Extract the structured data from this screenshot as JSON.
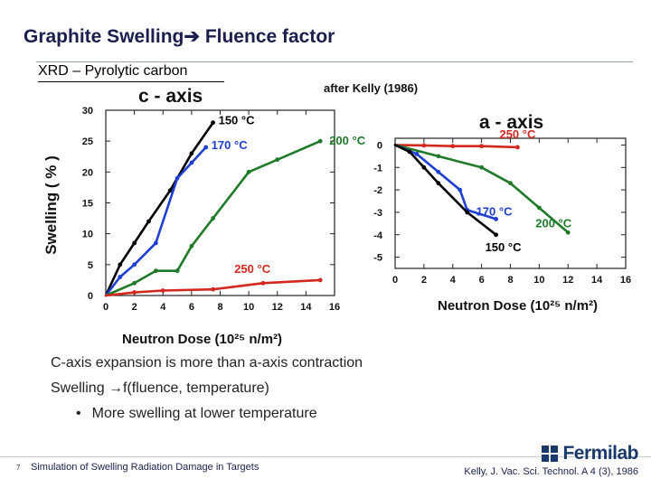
{
  "slide": {
    "title_left": "Graphite Swelling",
    "title_arrow": "➔",
    "title_right": " Fluence factor",
    "subtitle": "XRD – Pyrolytic carbon",
    "body_line1": "C-axis expansion is more than a-axis contraction",
    "body_line2": "Swelling →f(fluence, temperature)",
    "bullet_char": "•",
    "bullet1": "More swelling at lower temperature",
    "page_number": "7",
    "footer_left": "Simulation of Swelling Radiation Damage in Targets",
    "footer_right": "Kelly, J. Vac. Sci. Technol. A 4 (3), 1986",
    "logo": "Fermilab"
  },
  "chart_data": [
    {
      "type": "line",
      "title": "c - axis",
      "annotation": "after Kelly (1986)",
      "xlabel": "Neutron Dose (10²⁵ n/m²)",
      "ylabel": "Swelling ( % )",
      "xlim": [
        0,
        16
      ],
      "ylim": [
        0,
        30
      ],
      "xticks": [
        0,
        2,
        4,
        6,
        8,
        10,
        12,
        14,
        16
      ],
      "yticks": [
        0,
        5,
        10,
        15,
        20,
        25,
        30
      ],
      "series": [
        {
          "name": "150 °C",
          "color": "#000000",
          "x": [
            0,
            1,
            2,
            3,
            4.5,
            6,
            7.5
          ],
          "y": [
            0,
            5,
            8.5,
            12,
            17,
            23,
            28
          ]
        },
        {
          "name": "170 °C",
          "color": "#1f3fd1",
          "x": [
            0,
            1,
            2,
            3.5,
            5,
            6,
            7
          ],
          "y": [
            0,
            3,
            5,
            8.5,
            19,
            21.5,
            24
          ]
        },
        {
          "name": "200 °C",
          "color": "#1f7a2a",
          "x": [
            0,
            2,
            3.5,
            5,
            6,
            7.5,
            10,
            12,
            15
          ],
          "y": [
            0,
            2,
            4,
            4,
            8,
            12.5,
            20,
            22,
            25
          ]
        },
        {
          "name": "250 °C",
          "color": "#d2281e",
          "x": [
            0,
            2,
            4,
            7.5,
            11,
            15
          ],
          "y": [
            0,
            0.5,
            0.8,
            1,
            2,
            2.5
          ]
        }
      ]
    },
    {
      "type": "line",
      "title": "a - axis",
      "xlabel": "Neutron Dose (10²⁵ n/m²)",
      "ylabel": "",
      "xlim": [
        0,
        16
      ],
      "ylim": [
        -5.5,
        0.3
      ],
      "xticks": [
        0,
        2,
        4,
        6,
        8,
        10,
        12,
        14,
        16
      ],
      "yticks": [
        0,
        -1,
        -2,
        -3,
        -4,
        -5
      ],
      "series": [
        {
          "name": "250 °C",
          "color": "#d2281e",
          "x": [
            0,
            2,
            4,
            6,
            8.5
          ],
          "y": [
            0,
            -0.02,
            -0.05,
            -0.05,
            -0.1
          ]
        },
        {
          "name": "200 °C",
          "color": "#1f7a2a",
          "x": [
            0,
            3,
            6,
            8,
            10,
            12
          ],
          "y": [
            0,
            -0.5,
            -1.0,
            -1.7,
            -2.8,
            -3.9
          ]
        },
        {
          "name": "170 °C",
          "color": "#1f3fd1",
          "x": [
            0,
            1.5,
            3,
            4.5,
            5,
            7
          ],
          "y": [
            0,
            -0.4,
            -1.2,
            -2.0,
            -2.9,
            -3.3
          ]
        },
        {
          "name": "150 °C",
          "color": "#000000",
          "x": [
            0,
            1,
            2,
            3,
            5,
            7
          ],
          "y": [
            0,
            -0.3,
            -1.0,
            -1.7,
            -3.0,
            -4.0
          ]
        }
      ]
    }
  ]
}
